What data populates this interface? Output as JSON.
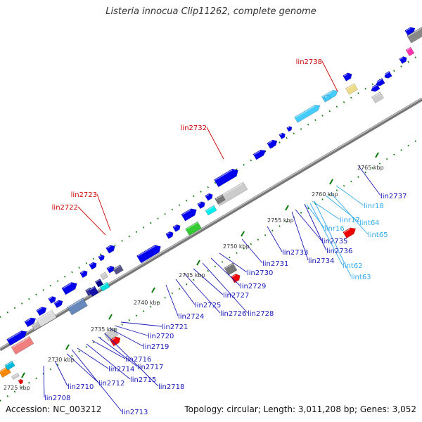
{
  "title": "Listeria innocua Clip11262, complete genome",
  "footer": {
    "accession": "Accession: NC_003212",
    "summary": "Topology: circular; Length: 3,011,208 bp; Genes: 3,052"
  },
  "colors": {
    "backbone": "#888888",
    "cds": "#0000ee",
    "rna": "#33ccff",
    "highlight": "#ee0000",
    "feature_label": "#1a1ab8",
    "rna_label": "#33aaee",
    "highlight_label": "#cc0000",
    "tick": "#0a7a0a"
  },
  "ruler": [
    "2725 kbp",
    "2730 kbp",
    "2735 kbp",
    "2740 kbp",
    "2745 kbp",
    "2750 kbp",
    "2755 kbp",
    "2760 kbp",
    "2765 kbp"
  ],
  "outer_labels": [
    "lin2722",
    "lin2723",
    "lin2732",
    "lin2738"
  ],
  "inner_labels": [
    "lin2708",
    "lin2710",
    "lin2712",
    "lin2713",
    "lin2714",
    "lin2715",
    "lin2716",
    "lin2717",
    "lin2718",
    "lin2719",
    "lin2720",
    "lin2721",
    "lin2724",
    "lin2725",
    "lin2726",
    "lin2727",
    "lin2728",
    "lin2729",
    "lin2730",
    "lin2731",
    "lin2733",
    "lin2734",
    "lin2735",
    "lin2736",
    "lin2737"
  ],
  "rna_labels": [
    "linr16",
    "linr17",
    "linr18",
    "lint62",
    "lint63",
    "lint64",
    "lint65"
  ]
}
